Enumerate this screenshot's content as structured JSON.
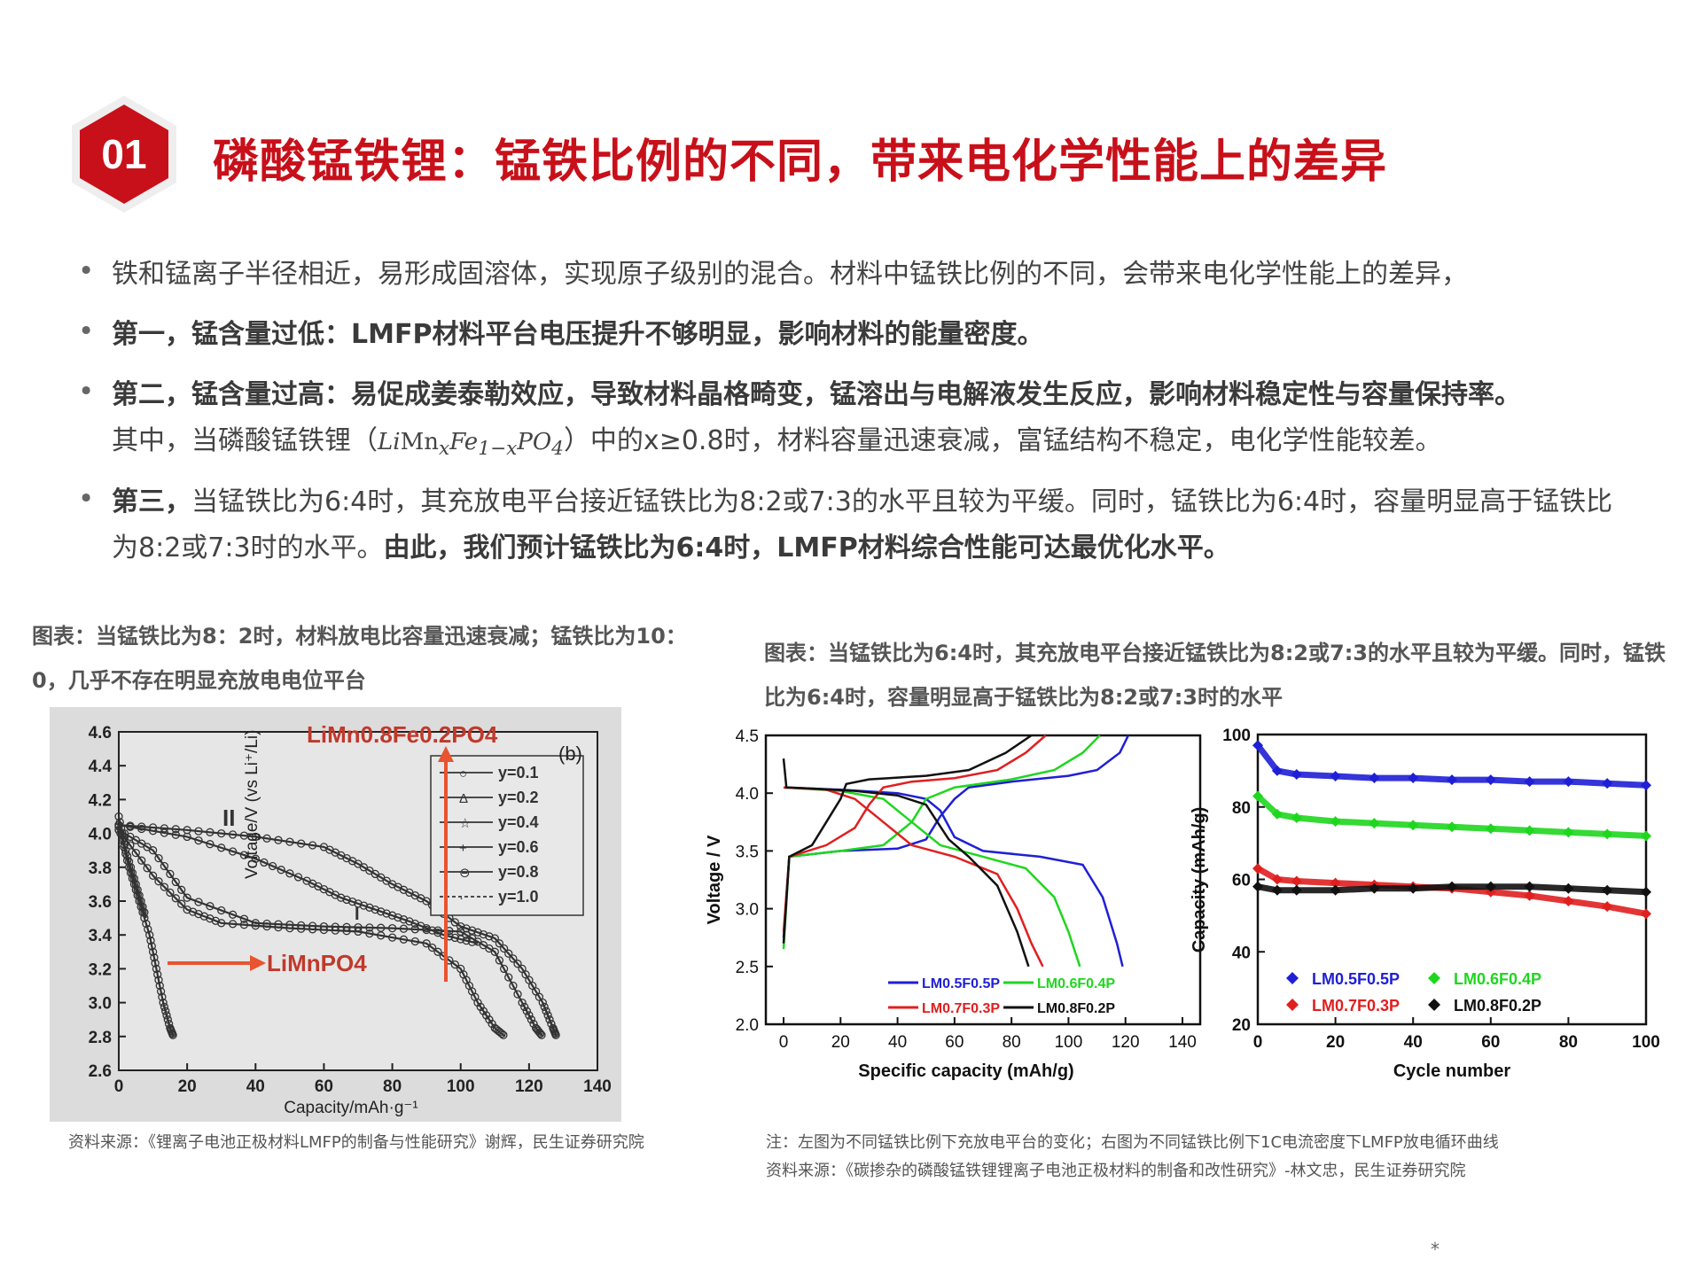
{
  "header": {
    "badge_number": "01",
    "title": "磷酸锰铁锂：锰铁比例的不同，带来电化学性能上的差异",
    "accent_color": "#c8101a"
  },
  "bullets": [
    {
      "normal": "铁和锰离子半径相近，易形成固溶体，实现原子级别的混合。材料中锰铁比例的不同，会带来电化学性能上的差异，"
    },
    {
      "bold": "第一，锰含量过低：LMFP材料平台电压提升不够明显，影响材料的能量密度。"
    },
    {
      "bold": "第二，锰含量过高：易促成姜泰勒效应，导致材料晶格畸变，锰溶出与电解液发生反应，影响材料稳定性与容量保持率。",
      "line2_pre": "其中，当磷酸锰铁锂（",
      "formula_a": "Li",
      "formula_b": "Mn",
      "formula_c": "x",
      "formula_d": "Fe",
      "formula_e": "1−x",
      "formula_f": "PO",
      "formula_g": "4",
      "line2_post": "）中的x≥0.8时，材料容量迅速衰减，富锰结构不稳定，电化学性能较差。"
    },
    {
      "bold_a": "第三，",
      "normal_a": "当锰铁比为6:4时，其充放电平台接近锰铁比为8:2或7:3的水平且较为平缓。同时，锰铁比为6:4时，容量明显高于锰铁比为8:2或7:3时的水平。",
      "bold_b": "由此，我们预计锰铁比为6:4时，LMFP材料综合性能可达最优化水平。"
    }
  ],
  "left_figure": {
    "caption": "图表：当锰铁比为8：2时，材料放电比容量迅速衰减；锰铁比为10：0，几乎不存在明显充放电电位平台",
    "panel_label": "(b)",
    "annot_top": "LiMn0.8Fe0.2PO4",
    "annot_left": "LiMnPO4",
    "curve_label_ii": "II",
    "curve_label_i": "I",
    "source": "资料来源：《锂离子电池正极材料LMFP的制备与性能研究》谢辉，民生证券研究院"
  },
  "right_figure": {
    "caption": "图表：当锰铁比为6:4时，其充放电平台接近锰铁比为8:2或7:3的水平且较为平缓。同时，锰铁比为6:4时，容量明显高于锰铁比为8:2或7:3时的水平",
    "note": "注：左图为不同锰铁比例下充放电平台的变化；右图为不同锰铁比例下1C电流密度下LMFP放电循环曲线",
    "source": "资料来源：《碳掺杂的磷酸锰铁锂锂离子电池正极材料的制备和改性研究》-林文忠，民生证券研究院"
  },
  "footer_mark": "*",
  "chart_data": [
    {
      "type": "line",
      "xlabel": "Capacity/mAh·g⁻¹",
      "ylabel": "Voltage/V (vs Li⁺/Li)",
      "xlim": [
        0,
        140
      ],
      "ylim": [
        2.6,
        4.6
      ],
      "xticks": [
        0,
        20,
        40,
        60,
        80,
        100,
        120,
        140
      ],
      "yticks": [
        2.6,
        2.8,
        3.0,
        3.2,
        3.4,
        3.6,
        3.8,
        4.0,
        4.2,
        4.4,
        4.6
      ],
      "legend_placement": "right",
      "series": [
        {
          "name": "y=0.1",
          "marker": "circle",
          "x": [
            0,
            3,
            6,
            9,
            11,
            13,
            15,
            16
          ],
          "y": [
            4.04,
            3.8,
            3.6,
            3.4,
            3.2,
            3.0,
            2.85,
            2.8
          ]
        },
        {
          "name": "y=0.2",
          "marker": "triangle",
          "x": [
            0,
            10,
            20,
            40,
            60,
            80,
            100,
            110,
            118,
            122,
            124
          ],
          "y": [
            4.02,
            3.9,
            3.62,
            3.47,
            3.45,
            3.44,
            3.42,
            3.3,
            3.0,
            2.85,
            2.8
          ]
        },
        {
          "name": "y=0.4",
          "marker": "star",
          "x": [
            0,
            20,
            40,
            60,
            70,
            80,
            90,
            100,
            110,
            118,
            124,
            127,
            128
          ],
          "y": [
            4.05,
            4.02,
            3.98,
            3.92,
            3.82,
            3.7,
            3.6,
            3.45,
            3.38,
            3.2,
            3.0,
            2.85,
            2.8
          ]
        },
        {
          "name": "y=0.6",
          "marker": "plus",
          "x": [
            0,
            20,
            40,
            55,
            65,
            75,
            85,
            95,
            105
          ],
          "y": [
            4.05,
            3.98,
            3.85,
            3.72,
            3.62,
            3.55,
            3.48,
            3.4,
            3.35
          ]
        },
        {
          "name": "y=0.8",
          "marker": "circle-dot",
          "x": [
            0,
            10,
            20,
            30,
            50,
            70,
            90,
            100,
            105,
            110,
            113
          ],
          "y": [
            4.02,
            3.75,
            3.55,
            3.47,
            3.44,
            3.42,
            3.35,
            3.2,
            3.0,
            2.85,
            2.8
          ]
        },
        {
          "name": "y=1.0",
          "marker": "dot",
          "x": [
            0,
            2,
            5,
            8
          ],
          "y": [
            4.1,
            3.9,
            3.7,
            3.5
          ]
        }
      ]
    },
    {
      "type": "line",
      "xlabel": "Specific capacity (mAh/g)",
      "ylabel": "Voltage / V",
      "xlim": [
        0,
        140
      ],
      "ylim": [
        2.0,
        4.5
      ],
      "xticks": [
        0,
        20,
        40,
        60,
        80,
        100,
        120,
        140
      ],
      "yticks": [
        2.0,
        2.5,
        3.0,
        3.5,
        4.0,
        4.5
      ],
      "legend_placement": "bottom-right",
      "series": [
        {
          "name": "LM0.5F0.5P",
          "color": "#1f1fd6",
          "charge": {
            "x": [
              0,
              2,
              20,
              40,
              50,
              55,
              60,
              65,
              80,
              100,
              110,
              118,
              121
            ],
            "y": [
              2.75,
              3.45,
              3.5,
              3.52,
              3.6,
              3.8,
              3.95,
              4.05,
              4.1,
              4.15,
              4.2,
              4.35,
              4.5
            ]
          },
          "discharge": {
            "x": [
              0,
              20,
              40,
              50,
              55,
              60,
              70,
              90,
              105,
              112,
              117,
              119
            ],
            "y": [
              4.05,
              4.03,
              4.0,
              3.95,
              3.85,
              3.62,
              3.5,
              3.45,
              3.38,
              3.1,
              2.7,
              2.5
            ]
          }
        },
        {
          "name": "LM0.6F0.4P",
          "color": "#1fd61f",
          "charge": {
            "x": [
              0,
              2,
              20,
              35,
              45,
              50,
              60,
              80,
              95,
              105,
              111
            ],
            "y": [
              2.65,
              3.45,
              3.5,
              3.55,
              3.75,
              3.95,
              4.05,
              4.12,
              4.2,
              4.35,
              4.5
            ]
          },
          "discharge": {
            "x": [
              0,
              20,
              35,
              45,
              55,
              70,
              85,
              95,
              100,
              104
            ],
            "y": [
              4.05,
              4.02,
              3.95,
              3.75,
              3.55,
              3.45,
              3.35,
              3.1,
              2.8,
              2.5
            ]
          }
        },
        {
          "name": "LM0.7F0.3P",
          "color": "#e01f1f",
          "charge": {
            "x": [
              0,
              2,
              15,
              25,
              30,
              35,
              45,
              60,
              75,
              85,
              92
            ],
            "y": [
              2.8,
              3.45,
              3.55,
              3.7,
              3.9,
              4.05,
              4.1,
              4.13,
              4.2,
              4.35,
              4.5
            ]
          },
          "discharge": {
            "x": [
              0,
              15,
              25,
              35,
              45,
              60,
              75,
              82,
              87,
              91
            ],
            "y": [
              4.05,
              4.03,
              3.95,
              3.75,
              3.55,
              3.45,
              3.3,
              3.0,
              2.7,
              2.5
            ]
          }
        },
        {
          "name": "LM0.8F0.2P",
          "color": "#111111",
          "charge": {
            "x": [
              0,
              2,
              10,
              15,
              20,
              22,
              30,
              50,
              65,
              78,
              87
            ],
            "y": [
              2.7,
              3.45,
              3.55,
              3.75,
              3.95,
              4.08,
              4.12,
              4.15,
              4.2,
              4.35,
              4.5
            ]
          },
          "discharge": {
            "x": [
              0,
              1,
              10,
              25,
              40,
              50,
              58,
              65,
              75,
              82,
              86
            ],
            "y": [
              4.3,
              4.05,
              4.04,
              4.02,
              3.98,
              3.9,
              3.6,
              3.45,
              3.2,
              2.8,
              2.5
            ]
          }
        }
      ]
    },
    {
      "type": "scatter",
      "xlabel": "Cycle number",
      "ylabel": "Capacity (mAh/g)",
      "xlim": [
        0,
        100
      ],
      "ylim": [
        20,
        100
      ],
      "xticks": [
        0,
        20,
        40,
        60,
        80,
        100
      ],
      "yticks": [
        20,
        40,
        60,
        80,
        100
      ],
      "legend_placement": "bottom",
      "series": [
        {
          "name": "LM0.5F0.5P",
          "color": "#1f1fd6",
          "x": [
            0,
            5,
            10,
            20,
            30,
            40,
            50,
            60,
            70,
            80,
            90,
            100
          ],
          "y": [
            97,
            90,
            89,
            88.5,
            88,
            88,
            87.5,
            87.5,
            87,
            87,
            86.5,
            86
          ]
        },
        {
          "name": "LM0.6F0.4P",
          "color": "#1fd61f",
          "x": [
            0,
            5,
            10,
            20,
            30,
            40,
            50,
            60,
            70,
            80,
            90,
            100
          ],
          "y": [
            83,
            78,
            77,
            76,
            75.5,
            75,
            74.5,
            74,
            73.5,
            73,
            72.5,
            72
          ]
        },
        {
          "name": "LM0.7F0.3P",
          "color": "#e01f1f",
          "x": [
            0,
            5,
            10,
            20,
            30,
            40,
            50,
            60,
            70,
            80,
            90,
            100
          ],
          "y": [
            63,
            60,
            59.5,
            59,
            58.5,
            58,
            57.5,
            56.5,
            55.5,
            54,
            52.5,
            50.5
          ]
        },
        {
          "name": "LM0.8F0.2P",
          "color": "#111111",
          "x": [
            0,
            5,
            10,
            20,
            30,
            40,
            50,
            60,
            70,
            80,
            90,
            100
          ],
          "y": [
            58,
            57,
            57,
            57,
            57.5,
            57.5,
            58,
            58,
            58,
            57.5,
            57,
            56.5
          ]
        }
      ]
    }
  ]
}
